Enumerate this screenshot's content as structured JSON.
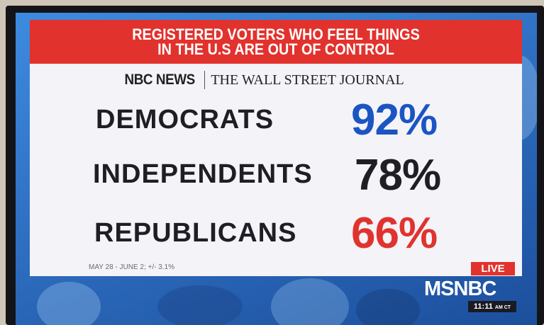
{
  "header": {
    "title_lines": [
      "REGISTERED VOTERS WHO FEEL THINGS",
      "IN THE U.S ARE OUT OF CONTROL"
    ]
  },
  "sources": [
    "NBC NEWS",
    "THE WALL STREET JOURNAL"
  ],
  "rows": [
    {
      "label": "DEMOCRATS",
      "value": "92%"
    },
    {
      "label": "INDEPENDENTS",
      "value": "78%"
    },
    {
      "label": "REPUBLICANS",
      "value": "66%"
    }
  ],
  "footnote": "MAY 28 - JUNE 2; +/- 3.1%",
  "badge": "LIVE",
  "network": "MSNBC",
  "clock": {
    "time": "11:11",
    "zone": "AM CT"
  }
}
